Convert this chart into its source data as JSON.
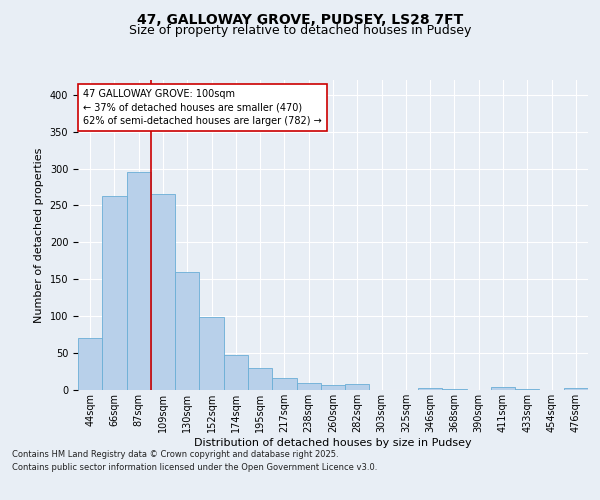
{
  "title": "47, GALLOWAY GROVE, PUDSEY, LS28 7FT",
  "subtitle": "Size of property relative to detached houses in Pudsey",
  "xlabel": "Distribution of detached houses by size in Pudsey",
  "ylabel": "Number of detached properties",
  "categories": [
    "44sqm",
    "66sqm",
    "87sqm",
    "109sqm",
    "130sqm",
    "152sqm",
    "174sqm",
    "195sqm",
    "217sqm",
    "238sqm",
    "260sqm",
    "282sqm",
    "303sqm",
    "325sqm",
    "346sqm",
    "368sqm",
    "390sqm",
    "411sqm",
    "433sqm",
    "454sqm",
    "476sqm"
  ],
  "values": [
    70,
    263,
    295,
    265,
    160,
    99,
    47,
    30,
    16,
    9,
    7,
    8,
    0,
    0,
    3,
    1,
    0,
    4,
    1,
    0,
    3
  ],
  "bar_color": "#b8d0ea",
  "bar_edge_color": "#6aaed6",
  "property_line_x": 2.5,
  "annotation_text": "47 GALLOWAY GROVE: 100sqm\n← 37% of detached houses are smaller (470)\n62% of semi-detached houses are larger (782) →",
  "annotation_box_color": "#ffffff",
  "annotation_box_edge": "#cc0000",
  "vline_color": "#cc0000",
  "footer_line1": "Contains HM Land Registry data © Crown copyright and database right 2025.",
  "footer_line2": "Contains public sector information licensed under the Open Government Licence v3.0.",
  "bg_color": "#e8eef5",
  "plot_bg_color": "#e8eef5",
  "grid_color": "#ffffff",
  "ylim": [
    0,
    420
  ],
  "title_fontsize": 10,
  "subtitle_fontsize": 9,
  "annotation_fontsize": 7,
  "ylabel_fontsize": 8,
  "xlabel_fontsize": 8,
  "tick_fontsize": 7,
  "footer_fontsize": 6
}
